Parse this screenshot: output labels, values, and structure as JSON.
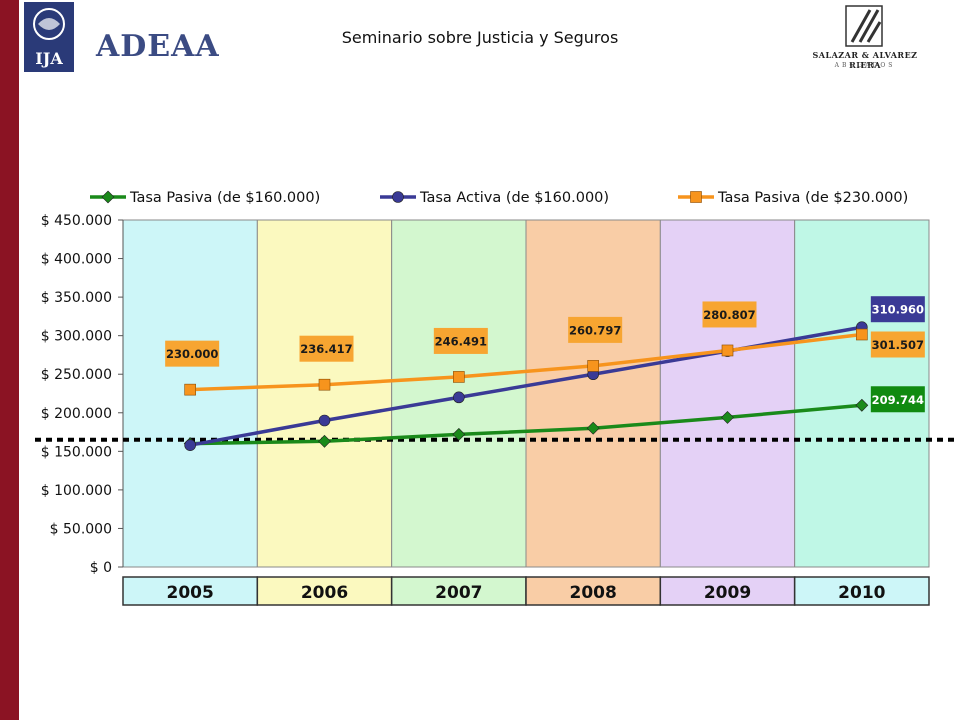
{
  "header": {
    "title": "Seminario sobre Justicia y Seguros",
    "logo_left_text": "IJA",
    "logo_center_text": "ADEAA",
    "logo_right_name": "SALAZAR & ALVAREZ RIERA",
    "logo_right_sub": "ABOGADOS"
  },
  "chart_data": {
    "type": "line",
    "categories": [
      "2005",
      "2006",
      "2007",
      "2008",
      "2009",
      "2010"
    ],
    "ylim": [
      0,
      450000
    ],
    "yticks": [
      {
        "value": 0,
        "label": "$ 0"
      },
      {
        "value": 50000,
        "label": "$ 50.000"
      },
      {
        "value": 100000,
        "label": "$ 100.000"
      },
      {
        "value": 150000,
        "label": "$ 150.000"
      },
      {
        "value": 200000,
        "label": "$ 200.000"
      },
      {
        "value": 250000,
        "label": "$ 250.000"
      },
      {
        "value": 300000,
        "label": "$ 300.000"
      },
      {
        "value": 350000,
        "label": "$ 350.000"
      },
      {
        "value": 400000,
        "label": "$ 400.000"
      },
      {
        "value": 450000,
        "label": "$ 450.000"
      }
    ],
    "legend_position": "top",
    "reference_line": {
      "value": 165000,
      "style": "dotted",
      "color": "#000000"
    },
    "band_colors": [
      "#cdf6f8",
      "#fbf9bf",
      "#d3f7cf",
      "#f9cda6",
      "#e4d1f6",
      "#bff7e6"
    ],
    "year_box_colors": [
      "#cdf6f8",
      "#fbf9bf",
      "#d3f7cf",
      "#f9cda6",
      "#e4d1f6",
      "#cdf6f8"
    ],
    "series": [
      {
        "name": "Tasa Pasiva (de $160.000)",
        "color": "#1a8a1a",
        "marker": "diamond",
        "values": [
          160000,
          163000,
          172000,
          180000,
          194000,
          209744
        ],
        "labels": [
          null,
          null,
          null,
          null,
          null,
          "209.744"
        ],
        "label_bg": "#108a10",
        "label_fg": "#ffffff"
      },
      {
        "name": "Tasa Activa (de $160.000)",
        "color": "#3a3a96",
        "marker": "circle",
        "values": [
          158000,
          190000,
          220000,
          250000,
          280000,
          310960
        ],
        "labels": [
          null,
          null,
          null,
          null,
          null,
          "310.960"
        ],
        "label_bg": "#3a3a96",
        "label_fg": "#ffffff"
      },
      {
        "name": "Tasa Pasiva (de $230.000)",
        "color": "#f7941d",
        "marker": "square",
        "values": [
          230000,
          236417,
          246491,
          260797,
          280807,
          301507
        ],
        "labels": [
          "230.000",
          "236.417",
          "246.491",
          "260.797",
          "280.807",
          "301.507"
        ],
        "label_bg": "#f7a531",
        "label_fg": "#1a1a1a"
      }
    ]
  }
}
